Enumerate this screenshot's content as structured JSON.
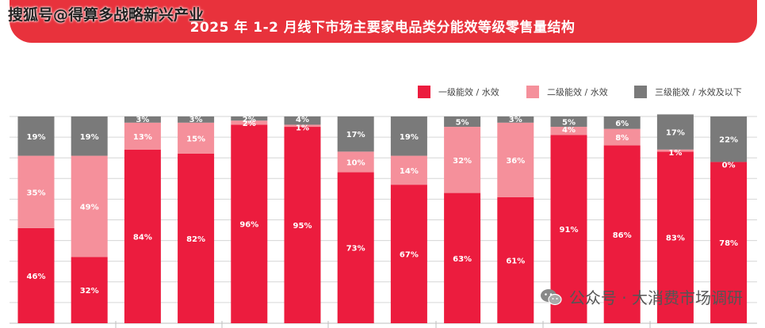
{
  "header": {
    "title": "2025 年 1-2 月线下市场主要家电品类分能效等级零售量结构",
    "watermark_top": "搜狐号@得算多战略新兴产业"
  },
  "footer": {
    "watermark": "公众号 · 大消费市场调研"
  },
  "colors": {
    "banner": "#e8323c",
    "level1": "#ec1c3e",
    "level2": "#f5909b",
    "level3": "#7a7a7a"
  },
  "chart_data": {
    "type": "bar",
    "stacked": true,
    "percent": true,
    "ylim": [
      0,
      100
    ],
    "grid": true,
    "legend_position": "top-right",
    "categories": [
      "",
      "",
      "",
      "",
      "",
      "",
      "",
      "",
      "",
      "",
      "",
      "",
      "",
      ""
    ],
    "series": [
      {
        "name": "一级能效 / 水效",
        "values": [
          46,
          32,
          84,
          82,
          96,
          95,
          73,
          67,
          63,
          61,
          91,
          86,
          83,
          78
        ]
      },
      {
        "name": "二级能效 / 水效",
        "values": [
          35,
          49,
          13,
          15,
          2,
          1,
          10,
          14,
          32,
          36,
          4,
          8,
          1,
          0
        ]
      },
      {
        "name": "三级能效 / 水效及以下",
        "values": [
          19,
          19,
          3,
          3,
          2,
          4,
          17,
          19,
          5,
          3,
          5,
          6,
          17,
          22
        ]
      }
    ]
  }
}
